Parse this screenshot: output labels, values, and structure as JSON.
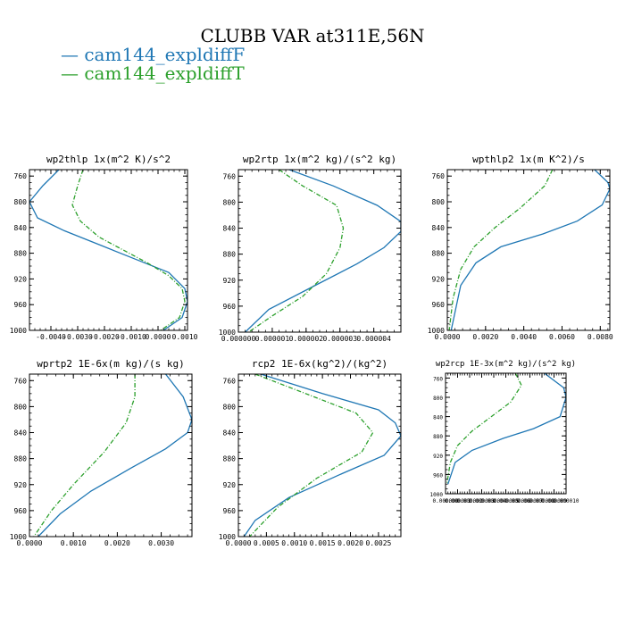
{
  "title": "CLUBB VAR at311E,56N",
  "colors": {
    "series1": "#1f77b4",
    "series2": "#2ca02c"
  },
  "legend": [
    {
      "label": "— cam144_expldiffF",
      "color": "#1f77b4"
    },
    {
      "label": "— cam144_expldiffT",
      "color": "#2ca02c"
    }
  ],
  "chart_data": [
    {
      "type": "line",
      "title": "wp2thlp  1x(m^2 K)/s^2",
      "xlim": [
        -0.0048,
        0.0011
      ],
      "ylim": [
        1000,
        750
      ],
      "xticks": [
        -0.004,
        -0.003,
        -0.002,
        -0.001,
        0.0,
        0.001
      ],
      "xticklabels": [
        "-0.0040",
        "-0.0030",
        "-0.0020",
        "-0.0010",
        "0.0000",
        "0.0010"
      ],
      "yticks": [
        760,
        800,
        840,
        880,
        920,
        960,
        1000
      ],
      "yticklabels": [
        "760",
        "800",
        "840",
        "880",
        "920",
        "960",
        "1000"
      ],
      "series": [
        {
          "name": "cam144_expldiffF",
          "color": "#1f77b4",
          "dash": "none",
          "x": [
            -0.0037,
            -0.0043,
            -0.0048,
            -0.0045,
            -0.0035,
            -0.002,
            -0.0008,
            0.0004,
            0.001,
            0.0011,
            0.0009,
            0.0002
          ],
          "y": [
            750,
            775,
            800,
            825,
            845,
            870,
            890,
            910,
            935,
            955,
            980,
            1000
          ]
        },
        {
          "name": "cam144_expldiffT",
          "color": "#2ca02c",
          "dash": "5,2,1,2",
          "x": [
            -0.0028,
            -0.003,
            -0.0032,
            -0.0029,
            -0.0022,
            -0.0013,
            -0.0004,
            0.0004,
            0.0009,
            0.001,
            0.0008,
            0.0001
          ],
          "y": [
            750,
            775,
            805,
            830,
            855,
            875,
            895,
            915,
            935,
            955,
            980,
            1000
          ]
        }
      ]
    },
    {
      "type": "line",
      "title": "wp2rtp  1x(m^2 kg)/(s^2 kg)",
      "xlim": [
        0.0,
        4.8e-06
      ],
      "ylim": [
        1000,
        750
      ],
      "xticks": [
        0.0,
        1e-06,
        2e-06,
        3e-06,
        4e-06
      ],
      "xticklabels": [
        "0.000000",
        "0.000001",
        "0.000002",
        "0.000003",
        "0.000004"
      ],
      "yticks": [
        760,
        800,
        840,
        880,
        920,
        960,
        1000
      ],
      "yticklabels": [
        "760",
        "800",
        "840",
        "880",
        "920",
        "960",
        "1000"
      ],
      "series": [
        {
          "name": "cam144_expldiffF",
          "color": "#1f77b4",
          "dash": "none",
          "x": [
            1.5e-06,
            2.8e-06,
            4.1e-06,
            4.8e-06,
            4.8e-06,
            4.3e-06,
            3.5e-06,
            2.2e-06,
            9e-07,
            2e-07
          ],
          "y": [
            750,
            775,
            805,
            830,
            845,
            870,
            895,
            930,
            965,
            1000
          ]
        },
        {
          "name": "cam144_expldiffT",
          "color": "#2ca02c",
          "dash": "5,2,1,2",
          "x": [
            1.2e-06,
            1.9e-06,
            2.9e-06,
            3.1e-06,
            3e-06,
            2.6e-06,
            1.9e-06,
            1e-06,
            3e-07
          ],
          "y": [
            750,
            775,
            805,
            840,
            870,
            910,
            945,
            975,
            1000
          ]
        }
      ]
    },
    {
      "type": "line",
      "title": "wpthlp2  1x(m K^2)/s",
      "xlim": [
        0.0,
        0.0085
      ],
      "ylim": [
        1000,
        750
      ],
      "xticks": [
        0.0,
        0.002,
        0.004,
        0.006,
        0.008
      ],
      "xticklabels": [
        "0.0000",
        "0.0020",
        "0.0040",
        "0.0060",
        "0.0080"
      ],
      "yticks": [
        760,
        800,
        840,
        880,
        920,
        960,
        1000
      ],
      "yticklabels": [
        "760",
        "800",
        "840",
        "880",
        "920",
        "960",
        "1000"
      ],
      "series": [
        {
          "name": "cam144_expldiffF",
          "color": "#1f77b4",
          "dash": "none",
          "x": [
            0.0077,
            0.0084,
            0.0085,
            0.0081,
            0.0068,
            0.005,
            0.0028,
            0.0015,
            0.0007,
            0.0002
          ],
          "y": [
            750,
            770,
            780,
            805,
            830,
            850,
            870,
            895,
            930,
            1000
          ]
        },
        {
          "name": "cam144_expldiffT",
          "color": "#2ca02c",
          "dash": "5,2,1,2",
          "x": [
            0.0055,
            0.0051,
            0.0038,
            0.0025,
            0.0014,
            0.0007,
            0.0003,
            0.0001
          ],
          "y": [
            750,
            775,
            810,
            840,
            870,
            905,
            950,
            1000
          ]
        }
      ]
    },
    {
      "type": "line",
      "title": "wprtp2  1E-6x(m kg)/(s kg)",
      "xlim": [
        0.0,
        0.0037
      ],
      "ylim": [
        1000,
        750
      ],
      "xticks": [
        0.0,
        0.001,
        0.002,
        0.003
      ],
      "xticklabels": [
        "0.0000",
        "0.0010",
        "0.0020",
        "0.0030"
      ],
      "yticks": [
        760,
        800,
        840,
        880,
        920,
        960,
        1000
      ],
      "yticklabels": [
        "760",
        "800",
        "840",
        "880",
        "920",
        "960",
        "1000"
      ],
      "series": [
        {
          "name": "cam144_expldiffF",
          "color": "#1f77b4",
          "dash": "none",
          "x": [
            0.0031,
            0.0035,
            0.0037,
            0.0036,
            0.0031,
            0.0023,
            0.0014,
            0.0007,
            0.0002
          ],
          "y": [
            750,
            785,
            820,
            840,
            865,
            895,
            930,
            965,
            1000
          ]
        },
        {
          "name": "cam144_expldiffT",
          "color": "#2ca02c",
          "dash": "5,2,1,2",
          "x": [
            0.0024,
            0.0024,
            0.0022,
            0.0017,
            0.001,
            0.0005,
            0.0001
          ],
          "y": [
            750,
            785,
            825,
            870,
            920,
            960,
            1000
          ]
        }
      ]
    },
    {
      "type": "line",
      "title": "rcp2  1E-6x(kg^2)/(kg^2)",
      "xlim": [
        0.0,
        0.0029
      ],
      "ylim": [
        1000,
        750
      ],
      "xticks": [
        0.0,
        0.0005,
        0.001,
        0.0015,
        0.002,
        0.0025
      ],
      "xticklabels": [
        "0.0000",
        "0.0005",
        "0.0010",
        "0.0015",
        "0.0020",
        "0.0025"
      ],
      "yticks": [
        760,
        800,
        840,
        880,
        920,
        960,
        1000
      ],
      "yticklabels": [
        "760",
        "800",
        "840",
        "880",
        "920",
        "960",
        "1000"
      ],
      "series": [
        {
          "name": "cam144_expldiffF",
          "color": "#1f77b4",
          "dash": "none",
          "x": [
            0.0004,
            0.0015,
            0.0025,
            0.0028,
            0.0029,
            0.0026,
            0.0018,
            0.0009,
            0.0003,
            0.0001
          ],
          "y": [
            750,
            780,
            805,
            825,
            845,
            875,
            905,
            940,
            975,
            1000
          ]
        },
        {
          "name": "cam144_expldiffT",
          "color": "#2ca02c",
          "dash": "5,2,1,2",
          "x": [
            0.0003,
            0.0012,
            0.0021,
            0.0024,
            0.0022,
            0.0014,
            0.0007,
            0.0002
          ],
          "y": [
            750,
            780,
            810,
            840,
            870,
            910,
            955,
            1000
          ]
        }
      ]
    },
    {
      "type": "line",
      "title": "wp2rcp  1E-3x(m^2 kg)/(s^2 kg)",
      "xlim": [
        0.0,
        1e-05
      ],
      "ylim": [
        1000,
        750
      ],
      "xticks": [
        0.0,
        1e-06,
        2e-06,
        3e-06,
        4e-06,
        5e-06,
        6e-06,
        7e-06,
        8e-06,
        9e-06,
        1e-05
      ],
      "xticklabels": [
        "0.000000",
        "0.000001",
        "0.000002",
        "0.000003",
        "0.000004",
        "0.000005",
        "0.000006",
        "0.000007",
        "0.000008",
        "0.000009",
        "0.000010"
      ],
      "yticks": [
        760,
        800,
        840,
        880,
        920,
        960,
        1000
      ],
      "yticklabels": [
        "760",
        "800",
        "840",
        "880",
        "920",
        "960",
        "1000"
      ],
      "series": [
        {
          "name": "cam144_expldiffF",
          "color": "#1f77b4",
          "dash": "none",
          "x": [
            8.2e-06,
            9.8e-06,
            1e-05,
            9.5e-06,
            7.3e-06,
            4.8e-06,
            2.2e-06,
            8e-07,
            2e-07
          ],
          "y": [
            750,
            780,
            800,
            840,
            865,
            885,
            910,
            935,
            980
          ]
        },
        {
          "name": "cam144_expldiffT",
          "color": "#2ca02c",
          "dash": "5,2,1,2",
          "x": [
            5.8e-06,
            6.3e-06,
            5.4e-06,
            3.8e-06,
            2.2e-06,
            1e-06,
            4e-07,
            1e-07
          ],
          "y": [
            750,
            775,
            810,
            840,
            870,
            900,
            935,
            980
          ]
        }
      ]
    }
  ]
}
